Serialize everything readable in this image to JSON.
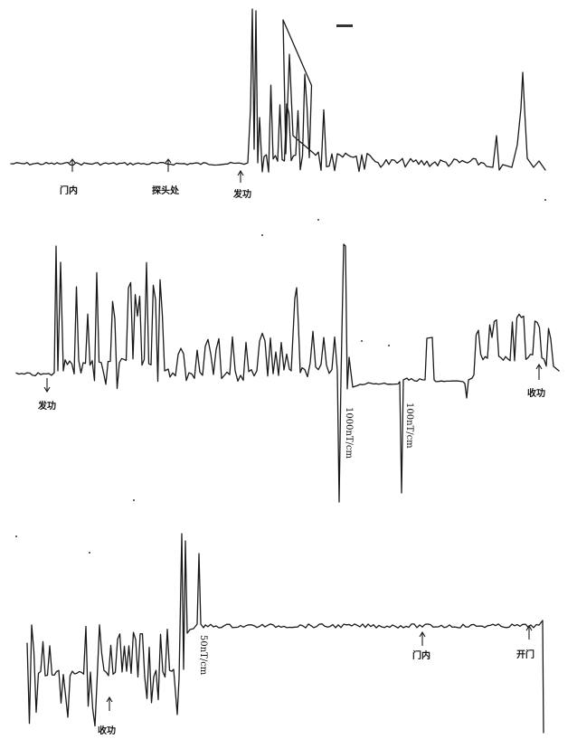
{
  "chart_data": [
    {
      "type": "line",
      "panel": "top",
      "markers": [
        "门内",
        "探头处",
        "发功"
      ],
      "scale_labels": []
    },
    {
      "type": "line",
      "panel": "middle",
      "markers": [
        "发功",
        "收功"
      ],
      "scale_labels": [
        "1000nT/cm",
        "100nT/cm"
      ]
    },
    {
      "type": "line",
      "panel": "bottom",
      "markers": [
        "收功",
        "门内",
        "开门"
      ],
      "scale_labels": [
        "50nT/cm"
      ]
    }
  ],
  "colors": {
    "ink": "#1a1a1a",
    "paper": "#ffffff"
  }
}
